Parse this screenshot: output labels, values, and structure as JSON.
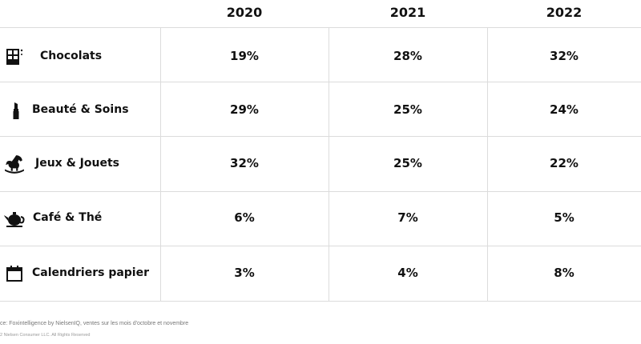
{
  "chart_data": {
    "type": "table",
    "columns": [
      "2020",
      "2021",
      "2022"
    ],
    "rows": [
      {
        "category": "Chocolats",
        "icon": "chocolate-bar-icon",
        "values": [
          "19%",
          "28%",
          "32%"
        ]
      },
      {
        "category": "Beauté & Soins",
        "icon": "lipstick-icon",
        "values": [
          "29%",
          "25%",
          "24%"
        ]
      },
      {
        "category": "Jeux & Jouets",
        "icon": "rocking-horse-icon",
        "values": [
          "32%",
          "25%",
          "22%"
        ]
      },
      {
        "category": "Café & Thé",
        "icon": "teapot-icon",
        "values": [
          "6%",
          "7%",
          "5%"
        ]
      },
      {
        "category": "Calendriers papier",
        "icon": "calendar-icon",
        "values": [
          "3%",
          "4%",
          "8%"
        ]
      }
    ]
  },
  "footer": {
    "source": "ce: Foxintelligence by NielsenIQ, ventes sur les mois d'octobre et novembre",
    "copyright": "2 Nielsen Consumer LLC. All Rights Reserved"
  },
  "colors": {
    "text": "#111111",
    "grid": "#dcdcdc"
  }
}
